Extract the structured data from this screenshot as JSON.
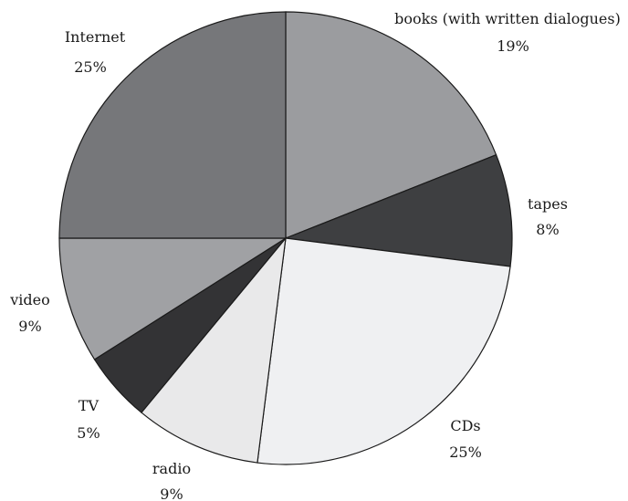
{
  "chart_data": {
    "type": "pie",
    "title": "",
    "start_angle_deg": 0,
    "direction": "clockwise",
    "slices": [
      {
        "label": "books (with written dialogues)",
        "pct_label": "19%",
        "value": 19,
        "color": "#9b9c9f"
      },
      {
        "label": "tapes",
        "pct_label": "8%",
        "value": 8,
        "color": "#3e3f41"
      },
      {
        "label": "CDs",
        "pct_label": "25%",
        "value": 25,
        "color": "#eff0f2"
      },
      {
        "label": "radio",
        "pct_label": "9%",
        "value": 9,
        "color": "#e9e9ea"
      },
      {
        "label": "TV",
        "pct_label": "5%",
        "value": 5,
        "color": "#333335"
      },
      {
        "label": "video",
        "pct_label": "9%",
        "value": 9,
        "color": "#a0a1a4"
      },
      {
        "label": "Internet",
        "pct_label": "25%",
        "value": 25,
        "color": "#76777a"
      }
    ]
  }
}
